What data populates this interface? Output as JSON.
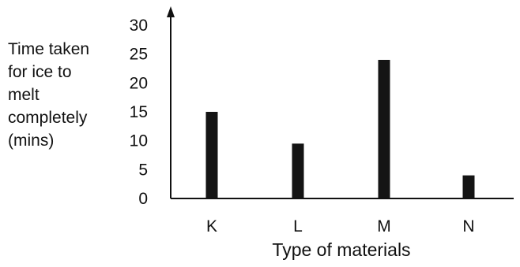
{
  "chart_data": {
    "type": "bar",
    "categories": [
      "K",
      "L",
      "M",
      "N"
    ],
    "values": [
      15,
      9.5,
      24,
      4
    ],
    "xlabel": "Type of materials",
    "ylabel": [
      "Time taken",
      "for ice to",
      "melt",
      "completely",
      "(mins)"
    ],
    "yticks": [
      0,
      5,
      10,
      15,
      20,
      25,
      30
    ],
    "ylim": [
      0,
      30
    ],
    "grid": false,
    "bar_color": "#141414",
    "axis_color": "#111111"
  }
}
